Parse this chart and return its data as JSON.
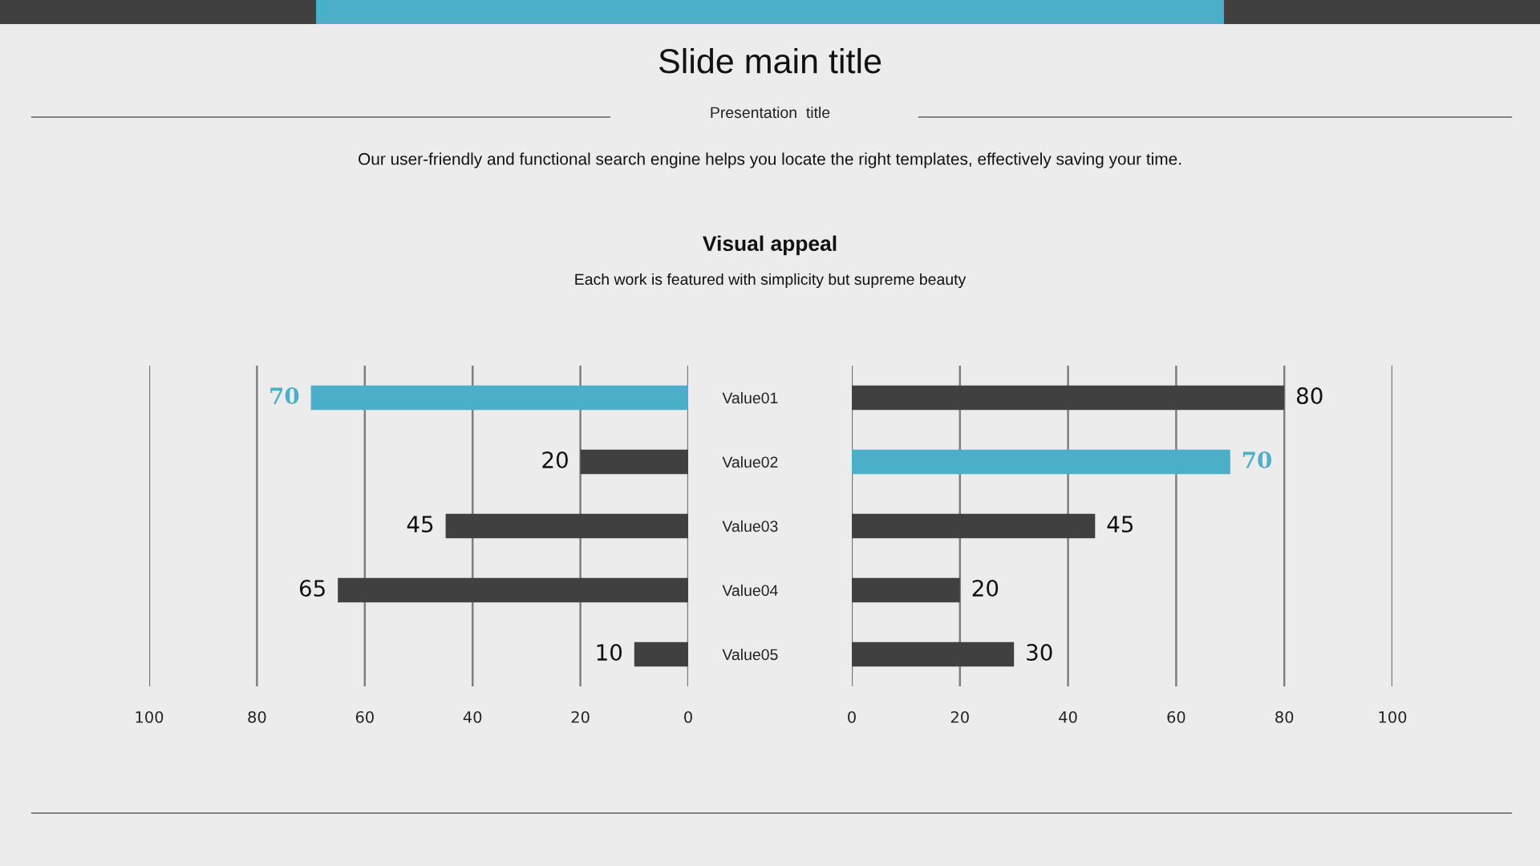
{
  "chart_data": [
    {
      "type": "other",
      "title": "Slide main title",
      "subtitle": "Presentation  title",
      "annotations": [
        "Our user-friendly and functional search engine helps you locate the right templates, effectively saving your time.",
        "Visual appeal",
        "Each work is featured with simplicity but supreme beauty"
      ]
    },
    {
      "type": "bar",
      "orientation": "horizontal",
      "categories": [
        null,
        null,
        null,
        null,
        null
      ],
      "values": [
        70,
        20,
        45,
        65,
        10
      ],
      "colors": [
        "#4bafc9",
        "#404040",
        "#404040",
        "#404040",
        "#404040"
      ],
      "xlim": [
        100,
        0
      ],
      "xticks": [
        100,
        80,
        60,
        40,
        20,
        0
      ],
      "grid": "x",
      "data_labels": true,
      "tick_labels": "x"
    },
    {
      "type": "bar",
      "orientation": "horizontal",
      "categories": [
        "Value01",
        "Value02",
        "Value03",
        "Value04",
        "Value05"
      ],
      "values": [
        80,
        70,
        45,
        20,
        30
      ],
      "colors": [
        "#404040",
        "#4bafc9",
        "#404040",
        "#404040",
        "#404040"
      ],
      "xlim": [
        0,
        100
      ],
      "xticks": [
        0,
        20,
        40,
        60,
        80,
        100
      ],
      "grid": "x",
      "data_labels": true
    }
  ]
}
